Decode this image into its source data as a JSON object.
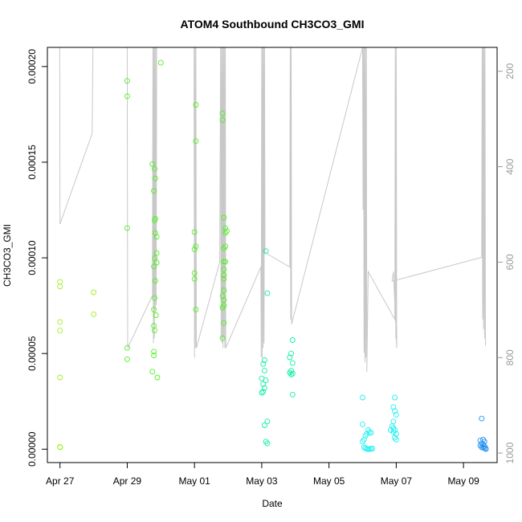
{
  "chart_data": {
    "type": "scatter",
    "title": "ATOM4 Southbound CH3CO3_GMI",
    "xlabel": "Date",
    "ylabel": "CH3CO3_GMI",
    "xlim": [
      "2016-04-26T15:00",
      "2016-05-10T00:00"
    ],
    "ylim": [
      -7e-06,
      0.00021
    ],
    "x_ticks": [
      {
        "date": "2016-04-27",
        "label": "Apr 27"
      },
      {
        "date": "2016-04-29",
        "label": "Apr 29"
      },
      {
        "date": "2016-05-01",
        "label": "May 01"
      },
      {
        "date": "2016-05-03",
        "label": "May 03"
      },
      {
        "date": "2016-05-05",
        "label": "May 05"
      },
      {
        "date": "2016-05-07",
        "label": "May 07"
      },
      {
        "date": "2016-05-09",
        "label": "May 09"
      }
    ],
    "y_ticks": [
      {
        "value": 0.0,
        "label": "0.00000"
      },
      {
        "value": 5e-05,
        "label": "0.00005"
      },
      {
        "value": 0.0001,
        "label": "0.00010"
      },
      {
        "value": 0.00015,
        "label": "0.00015"
      },
      {
        "value": 0.0002,
        "label": "0.00020"
      }
    ],
    "right_axis": {
      "quantity": "pressure",
      "reversed": true,
      "range": [
        150,
        1020
      ],
      "ticks": [
        {
          "value": 200,
          "label": "200"
        },
        {
          "value": 400,
          "label": "400"
        },
        {
          "value": 600,
          "label": "600"
        },
        {
          "value": 800,
          "label": "800"
        },
        {
          "value": 1000,
          "label": "1000"
        }
      ],
      "line_color": "#c8c8c8"
    },
    "grid": false,
    "series": [
      {
        "color": "#a0f020",
        "points": [
          [
            "2016-04-27T00:00",
            8.75e-05
          ],
          [
            "2016-04-27T00:00",
            8.5e-05
          ],
          [
            "2016-04-27T00:00",
            6.65e-05
          ],
          [
            "2016-04-27T00:00",
            6.2e-05
          ],
          [
            "2016-04-27T00:00",
            3.75e-05
          ],
          [
            "2016-04-27T00:00",
            1.2e-06
          ],
          [
            "2016-04-27T00:10",
            1e-06
          ],
          [
            "2016-04-28T00:00",
            8.2e-05
          ],
          [
            "2016-04-28T00:00",
            7.05e-05
          ]
        ]
      },
      {
        "color": "#50f020",
        "points": [
          [
            "2016-04-29T00:00",
            0.0001925
          ],
          [
            "2016-04-29T00:00",
            0.0001845
          ],
          [
            "2016-04-29T00:00",
            0.0001155
          ],
          [
            "2016-04-29T00:00",
            5.3e-05
          ],
          [
            "2016-04-29T00:00",
            4.7e-05
          ],
          [
            "2016-04-29T18:00",
            0.000149
          ],
          [
            "2016-04-29T19:00",
            0.000135
          ],
          [
            "2016-04-29T19:30",
            0.0001465
          ],
          [
            "2016-04-29T20:00",
            0.0001415
          ],
          [
            "2016-04-29T20:00",
            0.0001205
          ],
          [
            "2016-04-29T19:30",
            0.0001195
          ],
          [
            "2016-04-29T20:00",
            0.000113
          ],
          [
            "2016-04-29T21:00",
            0.000111
          ],
          [
            "2016-04-29T21:00",
            0.0001025
          ],
          [
            "2016-04-29T19:40",
            9.98e-05
          ],
          [
            "2016-04-29T21:00",
            9.75e-05
          ],
          [
            "2016-04-29T19:00",
            9.55e-05
          ],
          [
            "2016-04-29T20:00",
            8.8e-05
          ],
          [
            "2016-04-29T19:30",
            7.9e-05
          ],
          [
            "2016-04-29T19:00",
            7.3e-05
          ],
          [
            "2016-04-29T20:30",
            7e-05
          ],
          [
            "2016-04-29T19:00",
            6.45e-05
          ],
          [
            "2016-04-29T19:30",
            6.2e-05
          ],
          [
            "2016-04-29T19:00",
            5.1e-05
          ],
          [
            "2016-04-29T19:00",
            4.9e-05
          ],
          [
            "2016-04-29T18:00",
            4.05e-05
          ],
          [
            "2016-04-29T21:30",
            3.75e-05
          ],
          [
            "2016-04-30T00:00",
            0.000202
          ],
          [
            "2016-05-01T01:00",
            0.00018
          ],
          [
            "2016-05-01T01:00",
            0.000161
          ],
          [
            "2016-05-01T00:00",
            0.0001135
          ],
          [
            "2016-05-01T01:00",
            0.000106
          ],
          [
            "2016-05-01T00:00",
            0.0001045
          ],
          [
            "2016-05-01T00:00",
            9.2e-05
          ],
          [
            "2016-05-01T00:00",
            8.9e-05
          ],
          [
            "2016-05-01T01:00",
            7.3e-05
          ],
          [
            "2016-05-01T20:00",
            0.0001755
          ],
          [
            "2016-05-01T20:00",
            0.000172
          ],
          [
            "2016-05-01T21:00",
            0.000121
          ],
          [
            "2016-05-01T22:00",
            0.0001155
          ],
          [
            "2016-05-01T23:00",
            0.000114
          ],
          [
            "2016-05-01T22:00",
            0.000113
          ],
          [
            "2016-05-01T22:00",
            0.000106
          ],
          [
            "2016-05-01T21:00",
            0.000105
          ],
          [
            "2016-05-01T22:00",
            9.8e-05
          ],
          [
            "2016-05-01T21:00",
            9.8e-05
          ],
          [
            "2016-05-01T21:00",
            9.4e-05
          ],
          [
            "2016-05-01T21:00",
            9.1e-05
          ],
          [
            "2016-05-01T21:00",
            8.9e-05
          ],
          [
            "2016-05-01T21:00",
            8.3e-05
          ],
          [
            "2016-05-01T20:00",
            8e-05
          ],
          [
            "2016-05-01T21:00",
            7.8e-05
          ],
          [
            "2016-05-01T21:00",
            7.5e-05
          ],
          [
            "2016-05-01T20:00",
            7.4e-05
          ],
          [
            "2016-05-01T21:00",
            6.6e-05
          ],
          [
            "2016-05-01T20:00",
            5.8e-05
          ]
        ]
      },
      {
        "color": "#10f0a0",
        "points": [
          [
            "2016-05-03T03:00",
            0.0001035
          ],
          [
            "2016-05-03T04:00",
            8.15e-05
          ],
          [
            "2016-05-03T02:00",
            4.65e-05
          ],
          [
            "2016-05-03T01:00",
            4.45e-05
          ],
          [
            "2016-05-03T02:00",
            4.1e-05
          ],
          [
            "2016-05-03T00:00",
            3.7e-05
          ],
          [
            "2016-05-03T03:00",
            3.6e-05
          ],
          [
            "2016-05-03T01:00",
            3.4e-05
          ],
          [
            "2016-05-03T02:00",
            3.2e-05
          ],
          [
            "2016-05-03T00:00",
            2.95e-05
          ],
          [
            "2016-05-03T01:00",
            3e-05
          ],
          [
            "2016-05-03T04:00",
            1.45e-05
          ],
          [
            "2016-05-03T02:00",
            1.25e-05
          ],
          [
            "2016-05-03T03:00",
            4e-06
          ],
          [
            "2016-05-03T04:00",
            3e-06
          ],
          [
            "2016-05-03T22:00",
            5.7e-05
          ],
          [
            "2016-05-03T21:00",
            5e-05
          ],
          [
            "2016-05-03T20:00",
            4.8e-05
          ],
          [
            "2016-05-03T22:00",
            4.5e-05
          ],
          [
            "2016-05-03T21:00",
            4.1e-05
          ],
          [
            "2016-05-03T20:00",
            4e-05
          ],
          [
            "2016-05-03T22:00",
            3.95e-05
          ],
          [
            "2016-05-03T21:00",
            3.9e-05
          ],
          [
            "2016-05-03T22:00",
            2.85e-05
          ]
        ]
      },
      {
        "color": "#20f0f0",
        "points": [
          [
            "2016-05-06T00:00",
            2.7e-05
          ],
          [
            "2016-05-06T00:00",
            1.3e-05
          ],
          [
            "2016-05-06T04:00",
            1e-05
          ],
          [
            "2016-05-06T05:00",
            9e-06
          ],
          [
            "2016-05-06T06:00",
            8.5e-06
          ],
          [
            "2016-05-06T03:00",
            8e-06
          ],
          [
            "2016-05-06T02:00",
            7e-06
          ],
          [
            "2016-05-06T01:00",
            5e-06
          ],
          [
            "2016-05-06T00:00",
            4e-06
          ],
          [
            "2016-05-06T01:00",
            1e-06
          ],
          [
            "2016-05-06T02:00",
            5e-07
          ],
          [
            "2016-05-06T03:00",
            2e-07
          ],
          [
            "2016-05-06T04:00",
            0.0
          ],
          [
            "2016-05-06T05:00",
            1e-07
          ],
          [
            "2016-05-06T06:00",
            2e-07
          ],
          [
            "2016-05-06T07:00",
            3e-07
          ],
          [
            "2016-05-06T23:00",
            2.7e-05
          ],
          [
            "2016-05-06T22:00",
            2.2e-05
          ],
          [
            "2016-05-06T23:00",
            2e-05
          ],
          [
            "2016-05-07T00:00",
            1.8e-05
          ],
          [
            "2016-05-06T22:00",
            1.45e-05
          ],
          [
            "2016-05-06T21:00",
            1.2e-05
          ],
          [
            "2016-05-06T22:00",
            1.1e-05
          ],
          [
            "2016-05-06T23:00",
            1e-05
          ],
          [
            "2016-05-06T20:00",
            1e-05
          ],
          [
            "2016-05-06T22:00",
            9e-06
          ],
          [
            "2016-05-07T00:00",
            8e-06
          ],
          [
            "2016-05-06T23:00",
            6e-06
          ],
          [
            "2016-05-07T00:00",
            5e-06
          ]
        ]
      },
      {
        "color": "#2090f0",
        "points": [
          [
            "2016-05-09T13:00",
            1.6e-05
          ],
          [
            "2016-05-09T14:00",
            5e-06
          ],
          [
            "2016-05-09T12:00",
            4.5e-06
          ],
          [
            "2016-05-09T15:00",
            4e-06
          ],
          [
            "2016-05-09T13:00",
            3e-06
          ],
          [
            "2016-05-09T14:00",
            2.5e-06
          ],
          [
            "2016-05-09T12:00",
            2e-06
          ],
          [
            "2016-05-09T15:00",
            1.5e-06
          ],
          [
            "2016-05-09T13:00",
            1e-06
          ],
          [
            "2016-05-09T14:00",
            8e-07
          ],
          [
            "2016-05-09T15:00",
            5e-07
          ],
          [
            "2016-05-09T16:00",
            3e-07
          ],
          [
            "2016-05-09T16:00",
            1e-07
          ]
        ]
      }
    ],
    "pressure_track": [
      [
        "2016-04-26T23:50",
        150
      ],
      [
        "2016-04-27T00:00",
        520
      ],
      [
        "2016-04-27T23:00",
        330
      ],
      [
        "2016-04-27T23:30",
        150
      ],
      [
        "2016-04-27T23:40",
        150
      ],
      [
        "2016-04-28T00:00",
        150
      ],
      [
        "2016-04-29T00:00",
        150
      ],
      [
        "2016-04-29T00:20",
        780
      ],
      [
        "2016-04-29T18:00",
        670
      ],
      [
        "2016-04-29T18:20",
        150
      ],
      [
        "2016-04-29T18:40",
        770
      ],
      [
        "2016-04-29T19:00",
        150
      ],
      [
        "2016-04-29T19:20",
        760
      ],
      [
        "2016-04-29T19:40",
        150
      ],
      [
        "2016-04-29T20:00",
        700
      ],
      [
        "2016-04-29T20:20",
        150
      ],
      [
        "2016-04-29T20:40",
        690
      ],
      [
        "2016-04-29T21:00",
        150
      ],
      [
        "2016-04-30T23:40",
        150
      ],
      [
        "2016-05-01T00:00",
        800
      ],
      [
        "2016-05-01T00:20",
        150
      ],
      [
        "2016-05-01T00:40",
        780
      ],
      [
        "2016-05-01T01:00",
        150
      ],
      [
        "2016-05-01T01:20",
        780
      ],
      [
        "2016-05-01T18:00",
        600
      ],
      [
        "2016-05-01T18:40",
        150
      ],
      [
        "2016-05-01T19:00",
        760
      ],
      [
        "2016-05-01T19:20",
        150
      ],
      [
        "2016-05-01T19:40",
        770
      ],
      [
        "2016-05-01T20:00",
        150
      ],
      [
        "2016-05-01T20:20",
        780
      ],
      [
        "2016-05-01T20:40",
        150
      ],
      [
        "2016-05-01T21:00",
        760
      ],
      [
        "2016-05-01T21:20",
        150
      ],
      [
        "2016-05-01T21:40",
        780
      ],
      [
        "2016-05-01T22:00",
        150
      ],
      [
        "2016-05-01T22:20",
        780
      ],
      [
        "2016-05-02T23:20",
        610
      ],
      [
        "2016-05-02T23:40",
        800
      ],
      [
        "2016-05-03T00:00",
        150
      ],
      [
        "2016-05-03T00:20",
        800
      ],
      [
        "2016-05-03T00:40",
        150
      ],
      [
        "2016-05-03T01:00",
        780
      ],
      [
        "2016-05-03T01:20",
        150
      ],
      [
        "2016-05-03T01:40",
        770
      ],
      [
        "2016-05-03T02:00",
        150
      ],
      [
        "2016-05-03T02:20",
        580
      ],
      [
        "2016-05-03T20:00",
        610
      ],
      [
        "2016-05-03T20:20",
        150
      ],
      [
        "2016-05-03T20:40",
        720
      ],
      [
        "2016-05-03T21:00",
        150
      ],
      [
        "2016-05-03T21:20",
        730
      ],
      [
        "2016-05-06T00:00",
        150
      ],
      [
        "2016-05-06T00:20",
        490
      ],
      [
        "2016-05-06T00:40",
        150
      ],
      [
        "2016-05-06T01:00",
        790
      ],
      [
        "2016-05-06T01:20",
        150
      ],
      [
        "2016-05-06T01:40",
        810
      ],
      [
        "2016-05-06T02:00",
        150
      ],
      [
        "2016-05-06T02:20",
        800
      ],
      [
        "2016-05-06T02:40",
        150
      ],
      [
        "2016-05-06T03:00",
        830
      ],
      [
        "2016-05-06T04:00",
        620
      ],
      [
        "2016-05-06T23:00",
        720
      ],
      [
        "2016-05-06T23:20",
        150
      ],
      [
        "2016-05-06T23:40",
        760
      ],
      [
        "2016-05-07T00:00",
        150
      ],
      [
        "2016-05-07T00:20",
        780
      ],
      [
        "2016-05-06T22:00",
        620
      ],
      [
        "2016-05-06T21:00",
        640
      ],
      [
        "2016-05-09T13:00",
        590
      ],
      [
        "2016-05-09T13:20",
        150
      ],
      [
        "2016-05-09T13:40",
        720
      ],
      [
        "2016-05-09T14:00",
        150
      ],
      [
        "2016-05-09T14:20",
        740
      ],
      [
        "2016-05-09T14:40",
        150
      ],
      [
        "2016-05-09T15:00",
        760
      ],
      [
        "2016-05-09T15:20",
        150
      ],
      [
        "2016-05-09T15:40",
        775
      ]
    ]
  }
}
